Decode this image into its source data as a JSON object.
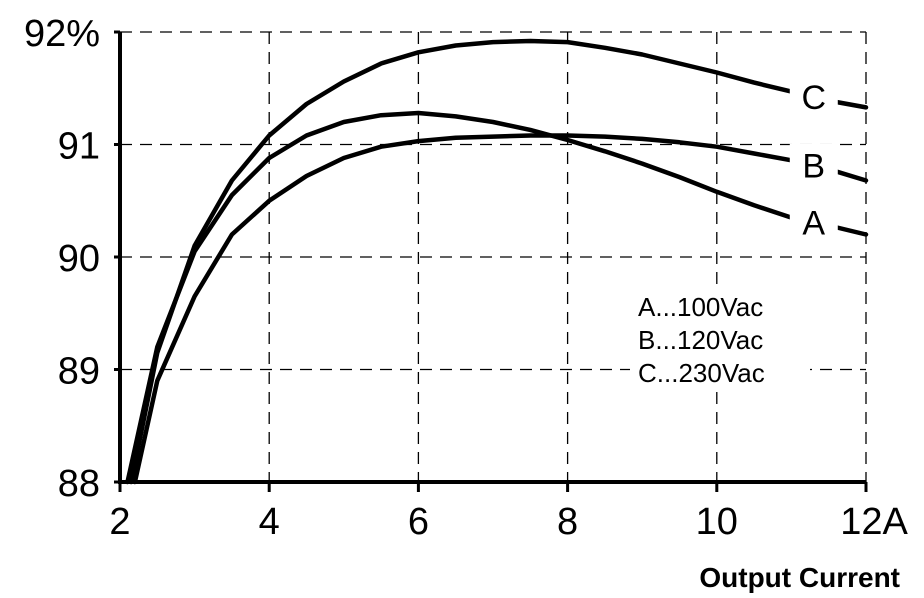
{
  "chart_data": {
    "type": "line",
    "xlabel": "Output Current",
    "ylabel": "",
    "xlim": [
      2,
      12
    ],
    "ylim": [
      88,
      92
    ],
    "grid": true,
    "x_ticks": [
      {
        "value": 2,
        "label": "2"
      },
      {
        "value": 4,
        "label": "4"
      },
      {
        "value": 6,
        "label": "6"
      },
      {
        "value": 8,
        "label": "8"
      },
      {
        "value": 10,
        "label": "10"
      },
      {
        "value": 12,
        "label": "12A"
      }
    ],
    "y_ticks": [
      {
        "value": 88,
        "label": "88"
      },
      {
        "value": 89,
        "label": "89"
      },
      {
        "value": 90,
        "label": "90"
      },
      {
        "value": 91,
        "label": "91"
      },
      {
        "value": 92,
        "label": "92%"
      }
    ],
    "series": [
      {
        "name": "A",
        "x": [
          2.1,
          2.3,
          2.5,
          3.0,
          3.5,
          4.0,
          4.5,
          5.0,
          5.5,
          6.0,
          6.5,
          7.0,
          7.5,
          8.0,
          8.5,
          9.0,
          9.5,
          10.0,
          10.5,
          11.0,
          11.5,
          12.0
        ],
        "y": [
          88.0,
          88.6,
          89.2,
          90.05,
          90.55,
          90.88,
          91.08,
          91.2,
          91.26,
          91.28,
          91.25,
          91.2,
          91.13,
          91.04,
          90.94,
          90.83,
          90.71,
          90.58,
          90.46,
          90.35,
          90.28,
          90.2
        ],
        "label_x": 11.3
      },
      {
        "name": "B",
        "x": [
          2.2,
          2.5,
          3.0,
          3.5,
          4.0,
          4.5,
          5.0,
          5.5,
          6.0,
          6.5,
          7.0,
          7.5,
          8.0,
          8.5,
          9.0,
          9.5,
          10.0,
          10.5,
          11.0,
          11.5,
          12.0
        ],
        "y": [
          88.0,
          88.9,
          89.65,
          90.2,
          90.5,
          90.72,
          90.88,
          90.98,
          91.03,
          91.06,
          91.07,
          91.08,
          91.08,
          91.07,
          91.05,
          91.02,
          90.98,
          90.92,
          90.86,
          90.78,
          90.68
        ],
        "label_x": 11.3
      },
      {
        "name": "C",
        "x": [
          2.15,
          2.5,
          3.0,
          3.5,
          4.0,
          4.5,
          5.0,
          5.5,
          6.0,
          6.5,
          7.0,
          7.5,
          8.0,
          8.5,
          9.0,
          9.5,
          10.0,
          10.5,
          11.0,
          11.5,
          12.0
        ],
        "y": [
          88.0,
          89.15,
          90.1,
          90.68,
          91.08,
          91.36,
          91.56,
          91.72,
          91.82,
          91.88,
          91.91,
          91.92,
          91.91,
          91.86,
          91.8,
          91.72,
          91.64,
          91.55,
          91.47,
          91.39,
          91.33
        ],
        "label_x": 11.3
      }
    ],
    "legend_entries": [
      "A...100Vac",
      "B...120Vac",
      "C...230Vac"
    ],
    "legend_placement": "right"
  }
}
